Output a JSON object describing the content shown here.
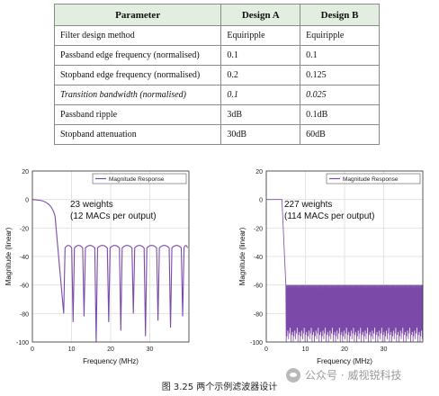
{
  "table": {
    "headers": [
      "Parameter",
      "Design A",
      "Design B"
    ],
    "rows": [
      {
        "cells": [
          "Filter design method",
          "Equiripple",
          "Equiripple"
        ],
        "italic": false
      },
      {
        "cells": [
          "Passband edge frequency (normalised)",
          "0.1",
          "0.1"
        ],
        "italic": false
      },
      {
        "cells": [
          "Stopband edge frequency (normalised)",
          "0.2",
          "0.125"
        ],
        "italic": false
      },
      {
        "cells": [
          "Transition bandwidth (normalised)",
          "0.1",
          "0.025"
        ],
        "italic": true
      },
      {
        "cells": [
          "Passband ripple",
          "3dB",
          "0.1dB"
        ],
        "italic": false
      },
      {
        "cells": [
          "Stopband attenuation",
          "30dB",
          "60dB"
        ],
        "italic": false
      }
    ]
  },
  "caption": "图  3.25  两个示例滤波器设计",
  "watermark": "公众号 · 威视锐科技",
  "chart_data": [
    {
      "type": "line",
      "title": "",
      "xlabel": "Frequency (MHz)",
      "ylabel": "Magnitude (linear)",
      "xlim": [
        0,
        40
      ],
      "ylim": [
        -100,
        20
      ],
      "xticks": [
        0,
        10,
        20,
        30
      ],
      "yticks": [
        20,
        0,
        -20,
        -40,
        -60,
        -80,
        -100
      ],
      "legend": "top-right",
      "grid": true,
      "color": "#7b4aa8",
      "series": [
        {
          "name": "Magnitude Response"
        }
      ],
      "annotation": [
        "23 weights",
        "(12 MACs per output)"
      ],
      "passband_edge": 4,
      "stopband_level": -30,
      "null_frequencies": [
        8,
        10.4,
        13.2,
        16.3,
        19.5,
        22.6,
        25.8,
        28.9,
        32.1,
        35.3,
        38.4
      ],
      "null_depths": [
        -80,
        -86,
        -82,
        -100,
        -86,
        -92,
        -80,
        -96,
        -85,
        -90,
        -82
      ]
    },
    {
      "type": "line",
      "title": "",
      "xlabel": "Frequency (MHz)",
      "ylabel": "Magnitude (linear)",
      "xlim": [
        0,
        40
      ],
      "ylim": [
        -100,
        20
      ],
      "xticks": [
        0,
        10,
        20,
        30
      ],
      "yticks": [
        20,
        0,
        -20,
        -40,
        -60,
        -80,
        -100
      ],
      "legend": "top-right",
      "grid": true,
      "color": "#7b4aa8",
      "series": [
        {
          "name": "Magnitude Response"
        }
      ],
      "annotation": [
        "227 weights",
        "(114 MACs per output)"
      ],
      "passband_edge": 4,
      "stopband_edge": 5,
      "stopband_level": -60
    }
  ]
}
